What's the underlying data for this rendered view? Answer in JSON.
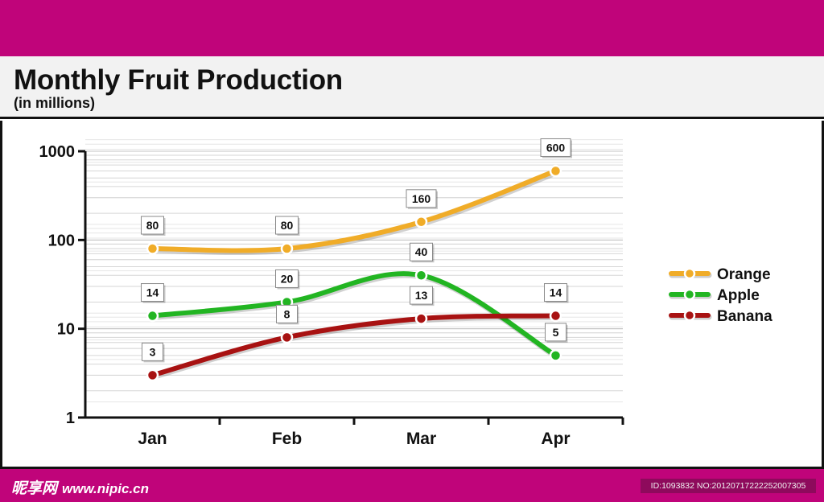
{
  "watermark": {
    "site_name": "昵享网",
    "url": "www.nipic.cn",
    "image_id": "ID:1093832 NO:20120717222252007305"
  },
  "chart_data": {
    "type": "line",
    "title": "Monthly Fruit Production",
    "subtitle": "(in millions)",
    "xlabel": "",
    "ylabel": "",
    "categories": [
      "Jan",
      "Feb",
      "Mar",
      "Apr"
    ],
    "y_scale": "log",
    "ylim": [
      1,
      1000
    ],
    "y_ticks": [
      1,
      10,
      100,
      1000
    ],
    "y_tick_labels": [
      "1",
      "10",
      "100",
      "1000"
    ],
    "grid": true,
    "legend_position": "right",
    "series": [
      {
        "name": "Orange",
        "color": "#f0ac28",
        "values": [
          80,
          80,
          160,
          600
        ],
        "labels": [
          "80",
          "80",
          "160",
          "600"
        ]
      },
      {
        "name": "Apple",
        "color": "#22b522",
        "values": [
          14,
          20,
          40,
          5
        ],
        "labels": [
          "14",
          "20",
          "40",
          "5"
        ]
      },
      {
        "name": "Banana",
        "color": "#a81212",
        "values": [
          3,
          8,
          13,
          14
        ],
        "labels": [
          "3",
          "8",
          "13",
          "14"
        ]
      }
    ]
  }
}
